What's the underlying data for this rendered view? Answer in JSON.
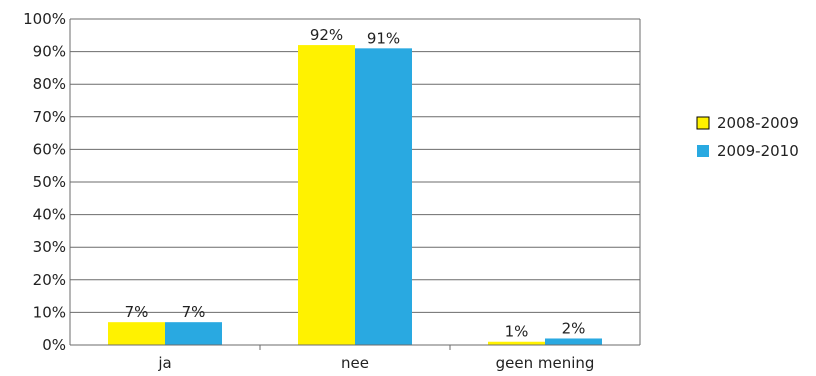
{
  "chart_data": {
    "type": "bar",
    "categories": [
      "ja",
      "nee",
      "geen mening"
    ],
    "series": [
      {
        "name": "2008-2009",
        "color": "#fff200",
        "values": [
          7,
          92,
          1
        ],
        "labels": [
          "7%",
          "92%",
          "1%"
        ]
      },
      {
        "name": "2009-2010",
        "color": "#29a9e1",
        "values": [
          7,
          91,
          2
        ],
        "labels": [
          "7%",
          "91%",
          "2%"
        ]
      }
    ],
    "ylim": [
      0,
      100
    ],
    "yticks": [
      "0%",
      "10%",
      "20%",
      "30%",
      "40%",
      "50%",
      "60%",
      "70%",
      "80%",
      "90%",
      "100%"
    ],
    "grid": true,
    "legend_position": "right",
    "title": "",
    "xlabel": "",
    "ylabel": ""
  }
}
